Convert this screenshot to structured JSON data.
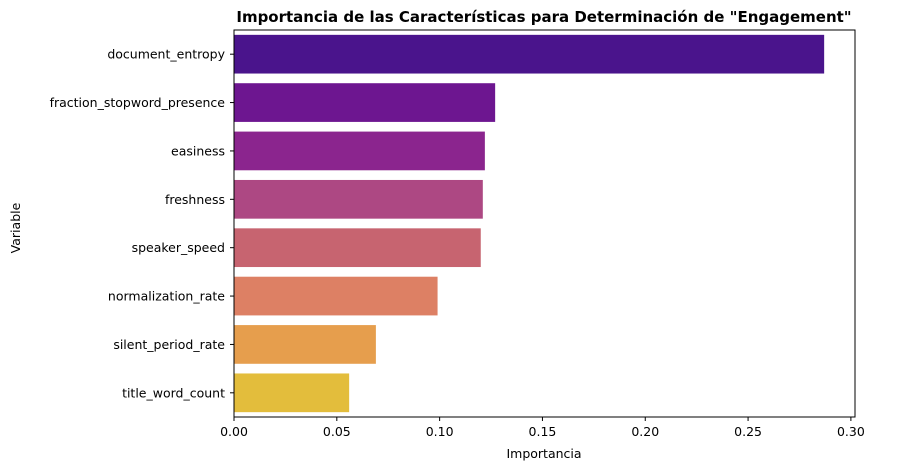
{
  "chart_data": {
    "type": "bar",
    "orientation": "horizontal",
    "title": "Importancia de las Características para Determinación de \"Engagement\"",
    "xlabel": "Importancia",
    "ylabel": "Variable",
    "categories": [
      "document_entropy",
      "fraction_stopword_presence",
      "easiness",
      "freshness",
      "speaker_speed",
      "normalization_rate",
      "silent_period_rate",
      "title_word_count"
    ],
    "values": [
      0.287,
      0.127,
      0.122,
      0.121,
      0.12,
      0.099,
      0.069,
      0.056
    ],
    "colors": [
      "#4a148c",
      "#6d1690",
      "#8b258e",
      "#ad4883",
      "#c76470",
      "#dd8064",
      "#e69e4d",
      "#e3bd3c"
    ],
    "xlim": [
      0,
      0.302
    ],
    "xticks": [
      0.0,
      0.05,
      0.1,
      0.15,
      0.2,
      0.25,
      0.3
    ],
    "xtick_labels": [
      "0.00",
      "0.05",
      "0.10",
      "0.15",
      "0.20",
      "0.25",
      "0.30"
    ],
    "grid": false,
    "legend": "none"
  }
}
